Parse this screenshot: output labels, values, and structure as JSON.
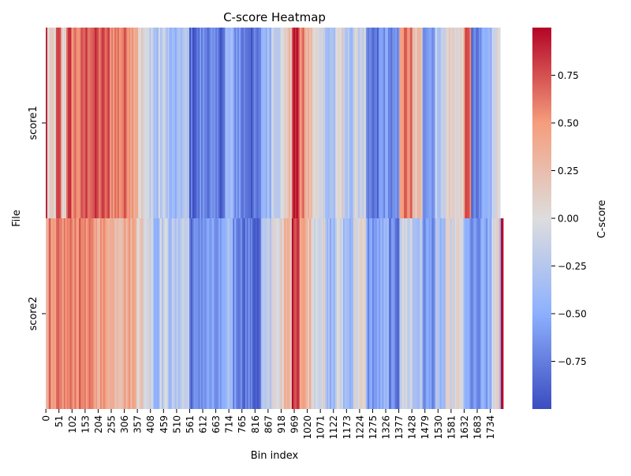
{
  "chart_data": {
    "type": "heatmap",
    "title": "C-score Heatmap",
    "xlabel": "Bin index",
    "ylabel": "File",
    "rows": [
      "score1",
      "score2"
    ],
    "x_tick_labels": [
      "0",
      "51",
      "102",
      "153",
      "204",
      "255",
      "306",
      "357",
      "408",
      "459",
      "510",
      "561",
      "612",
      "663",
      "714",
      "765",
      "816",
      "867",
      "918",
      "969",
      "1020",
      "1071",
      "1122",
      "1173",
      "1224",
      "1275",
      "1326",
      "1377",
      "1428",
      "1479",
      "1530",
      "1581",
      "1632",
      "1683",
      "1734"
    ],
    "n_bins": 1785,
    "score1_visible_bins": 1773,
    "colorbar": {
      "label": "C-score",
      "colormap": "coolwarm",
      "vmin": -1.0,
      "vmax": 1.0,
      "tick_values": [
        0.75,
        0.5,
        0.25,
        0.0,
        -0.25,
        -0.5,
        -0.75
      ],
      "tick_labels": [
        "0.75",
        "0.50",
        "0.25",
        "0.00",
        "−0.25",
        "−0.50",
        "−0.75"
      ]
    },
    "segments": {
      "score1": [
        [
          0,
          6,
          0.85
        ],
        [
          6,
          20,
          0.05
        ],
        [
          20,
          40,
          0.1
        ],
        [
          40,
          60,
          0.7
        ],
        [
          60,
          80,
          0.1
        ],
        [
          80,
          100,
          0.75
        ],
        [
          100,
          150,
          0.6
        ],
        [
          150,
          200,
          0.75
        ],
        [
          200,
          250,
          0.7
        ],
        [
          250,
          300,
          0.6
        ],
        [
          300,
          330,
          0.65
        ],
        [
          330,
          360,
          0.5
        ],
        [
          360,
          380,
          0.1
        ],
        [
          380,
          420,
          -0.1
        ],
        [
          420,
          440,
          -0.35
        ],
        [
          440,
          480,
          -0.2
        ],
        [
          480,
          520,
          -0.45
        ],
        [
          520,
          560,
          -0.3
        ],
        [
          560,
          600,
          -0.85
        ],
        [
          600,
          650,
          -0.7
        ],
        [
          650,
          700,
          -0.8
        ],
        [
          700,
          730,
          -0.45
        ],
        [
          730,
          760,
          -0.6
        ],
        [
          760,
          800,
          -0.75
        ],
        [
          800,
          840,
          -0.85
        ],
        [
          840,
          880,
          -0.4
        ],
        [
          880,
          930,
          -0.1
        ],
        [
          930,
          960,
          0.2
        ],
        [
          960,
          990,
          0.9
        ],
        [
          990,
          1010,
          0.55
        ],
        [
          1010,
          1040,
          0.3
        ],
        [
          1040,
          1090,
          0.0
        ],
        [
          1090,
          1130,
          -0.35
        ],
        [
          1130,
          1160,
          0.05
        ],
        [
          1160,
          1200,
          -0.3
        ],
        [
          1200,
          1250,
          -0.1
        ],
        [
          1250,
          1300,
          -0.85
        ],
        [
          1300,
          1340,
          -0.6
        ],
        [
          1340,
          1380,
          -0.75
        ],
        [
          1380,
          1430,
          0.6
        ],
        [
          1430,
          1470,
          0.2
        ],
        [
          1470,
          1520,
          -0.55
        ],
        [
          1520,
          1560,
          -0.2
        ],
        [
          1560,
          1600,
          0.1
        ],
        [
          1600,
          1630,
          0.05
        ],
        [
          1630,
          1660,
          0.65
        ],
        [
          1660,
          1700,
          -0.8
        ],
        [
          1700,
          1740,
          -0.5
        ],
        [
          1740,
          1773,
          0.0
        ]
      ],
      "score2": [
        [
          0,
          6,
          0.45
        ],
        [
          6,
          20,
          0.55
        ],
        [
          20,
          40,
          0.35
        ],
        [
          40,
          100,
          0.55
        ],
        [
          100,
          150,
          0.6
        ],
        [
          150,
          200,
          0.5
        ],
        [
          200,
          250,
          0.45
        ],
        [
          250,
          300,
          0.35
        ],
        [
          300,
          355,
          0.4
        ],
        [
          355,
          380,
          0.15
        ],
        [
          380,
          420,
          0.0
        ],
        [
          420,
          440,
          -0.45
        ],
        [
          440,
          480,
          -0.15
        ],
        [
          480,
          520,
          -0.3
        ],
        [
          520,
          560,
          -0.15
        ],
        [
          560,
          600,
          -0.75
        ],
        [
          600,
          650,
          -0.6
        ],
        [
          650,
          700,
          -0.65
        ],
        [
          700,
          730,
          -0.35
        ],
        [
          730,
          760,
          -0.65
        ],
        [
          760,
          800,
          -0.75
        ],
        [
          800,
          840,
          -0.85
        ],
        [
          840,
          880,
          -0.3
        ],
        [
          880,
          930,
          0.05
        ],
        [
          930,
          960,
          0.3
        ],
        [
          960,
          990,
          0.9
        ],
        [
          990,
          1010,
          0.5
        ],
        [
          1010,
          1040,
          0.3
        ],
        [
          1040,
          1090,
          0.0
        ],
        [
          1090,
          1130,
          -0.4
        ],
        [
          1130,
          1160,
          -0.1
        ],
        [
          1160,
          1200,
          -0.35
        ],
        [
          1200,
          1250,
          0.0
        ],
        [
          1250,
          1300,
          -0.6
        ],
        [
          1300,
          1340,
          -0.5
        ],
        [
          1340,
          1380,
          -0.75
        ],
        [
          1380,
          1430,
          -0.1
        ],
        [
          1430,
          1470,
          -0.3
        ],
        [
          1470,
          1520,
          -0.6
        ],
        [
          1520,
          1560,
          -0.4
        ],
        [
          1560,
          1600,
          -0.05
        ],
        [
          1600,
          1630,
          0.0
        ],
        [
          1630,
          1660,
          -0.55
        ],
        [
          1660,
          1700,
          -0.7
        ],
        [
          1700,
          1740,
          -0.55
        ],
        [
          1740,
          1770,
          0.0
        ],
        [
          1770,
          1776,
          -0.4
        ],
        [
          1776,
          1780,
          0.95
        ],
        [
          1780,
          1785,
          0.9
        ]
      ]
    }
  }
}
